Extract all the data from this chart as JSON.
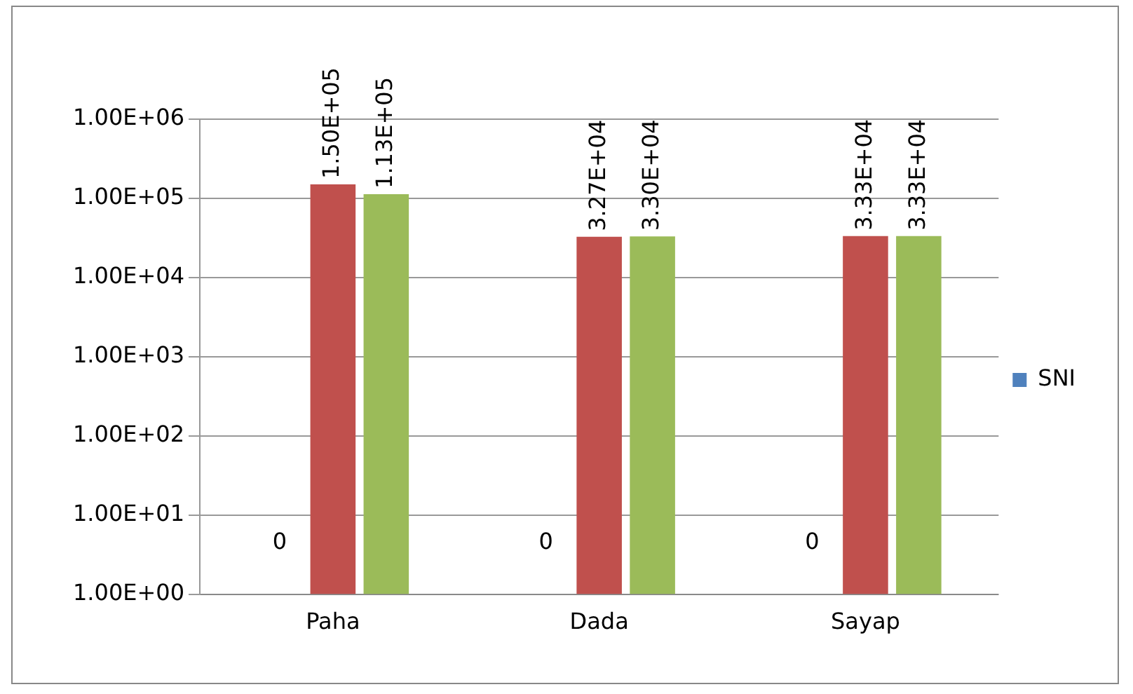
{
  "chart_data": {
    "type": "bar",
    "categories": [
      "Paha",
      "Dada",
      "Sayap"
    ],
    "series": [
      {
        "name": "SNI",
        "color": "#4f81bd",
        "values": [
          null,
          null,
          null
        ]
      },
      {
        "color": "#c0504d",
        "values": [
          150000,
          32700,
          33300
        ],
        "value_labels": [
          "1.50E+05",
          "3.27E+04",
          "3.33E+04"
        ]
      },
      {
        "color": "#9bbb59",
        "values": [
          113000,
          33000,
          33300
        ],
        "value_labels": [
          "1.13E+05",
          "3.30E+04",
          "3.33E+04"
        ]
      }
    ],
    "log": "y",
    "ylim": [
      1,
      1000000
    ],
    "yticks": [
      {
        "value": 1,
        "label": "1.00E+00"
      },
      {
        "value": 10,
        "label": "1.00E+01"
      },
      {
        "value": 100,
        "label": "1.00E+02"
      },
      {
        "value": 1000,
        "label": "1.00E+03"
      },
      {
        "value": 10000,
        "label": "1.00E+04"
      },
      {
        "value": 100000,
        "label": "1.00E+05"
      },
      {
        "value": 1000000,
        "label": "1.00E+06"
      }
    ],
    "grid": "y",
    "legend": "right",
    "annotations": [
      "0",
      "0",
      "0"
    ]
  }
}
